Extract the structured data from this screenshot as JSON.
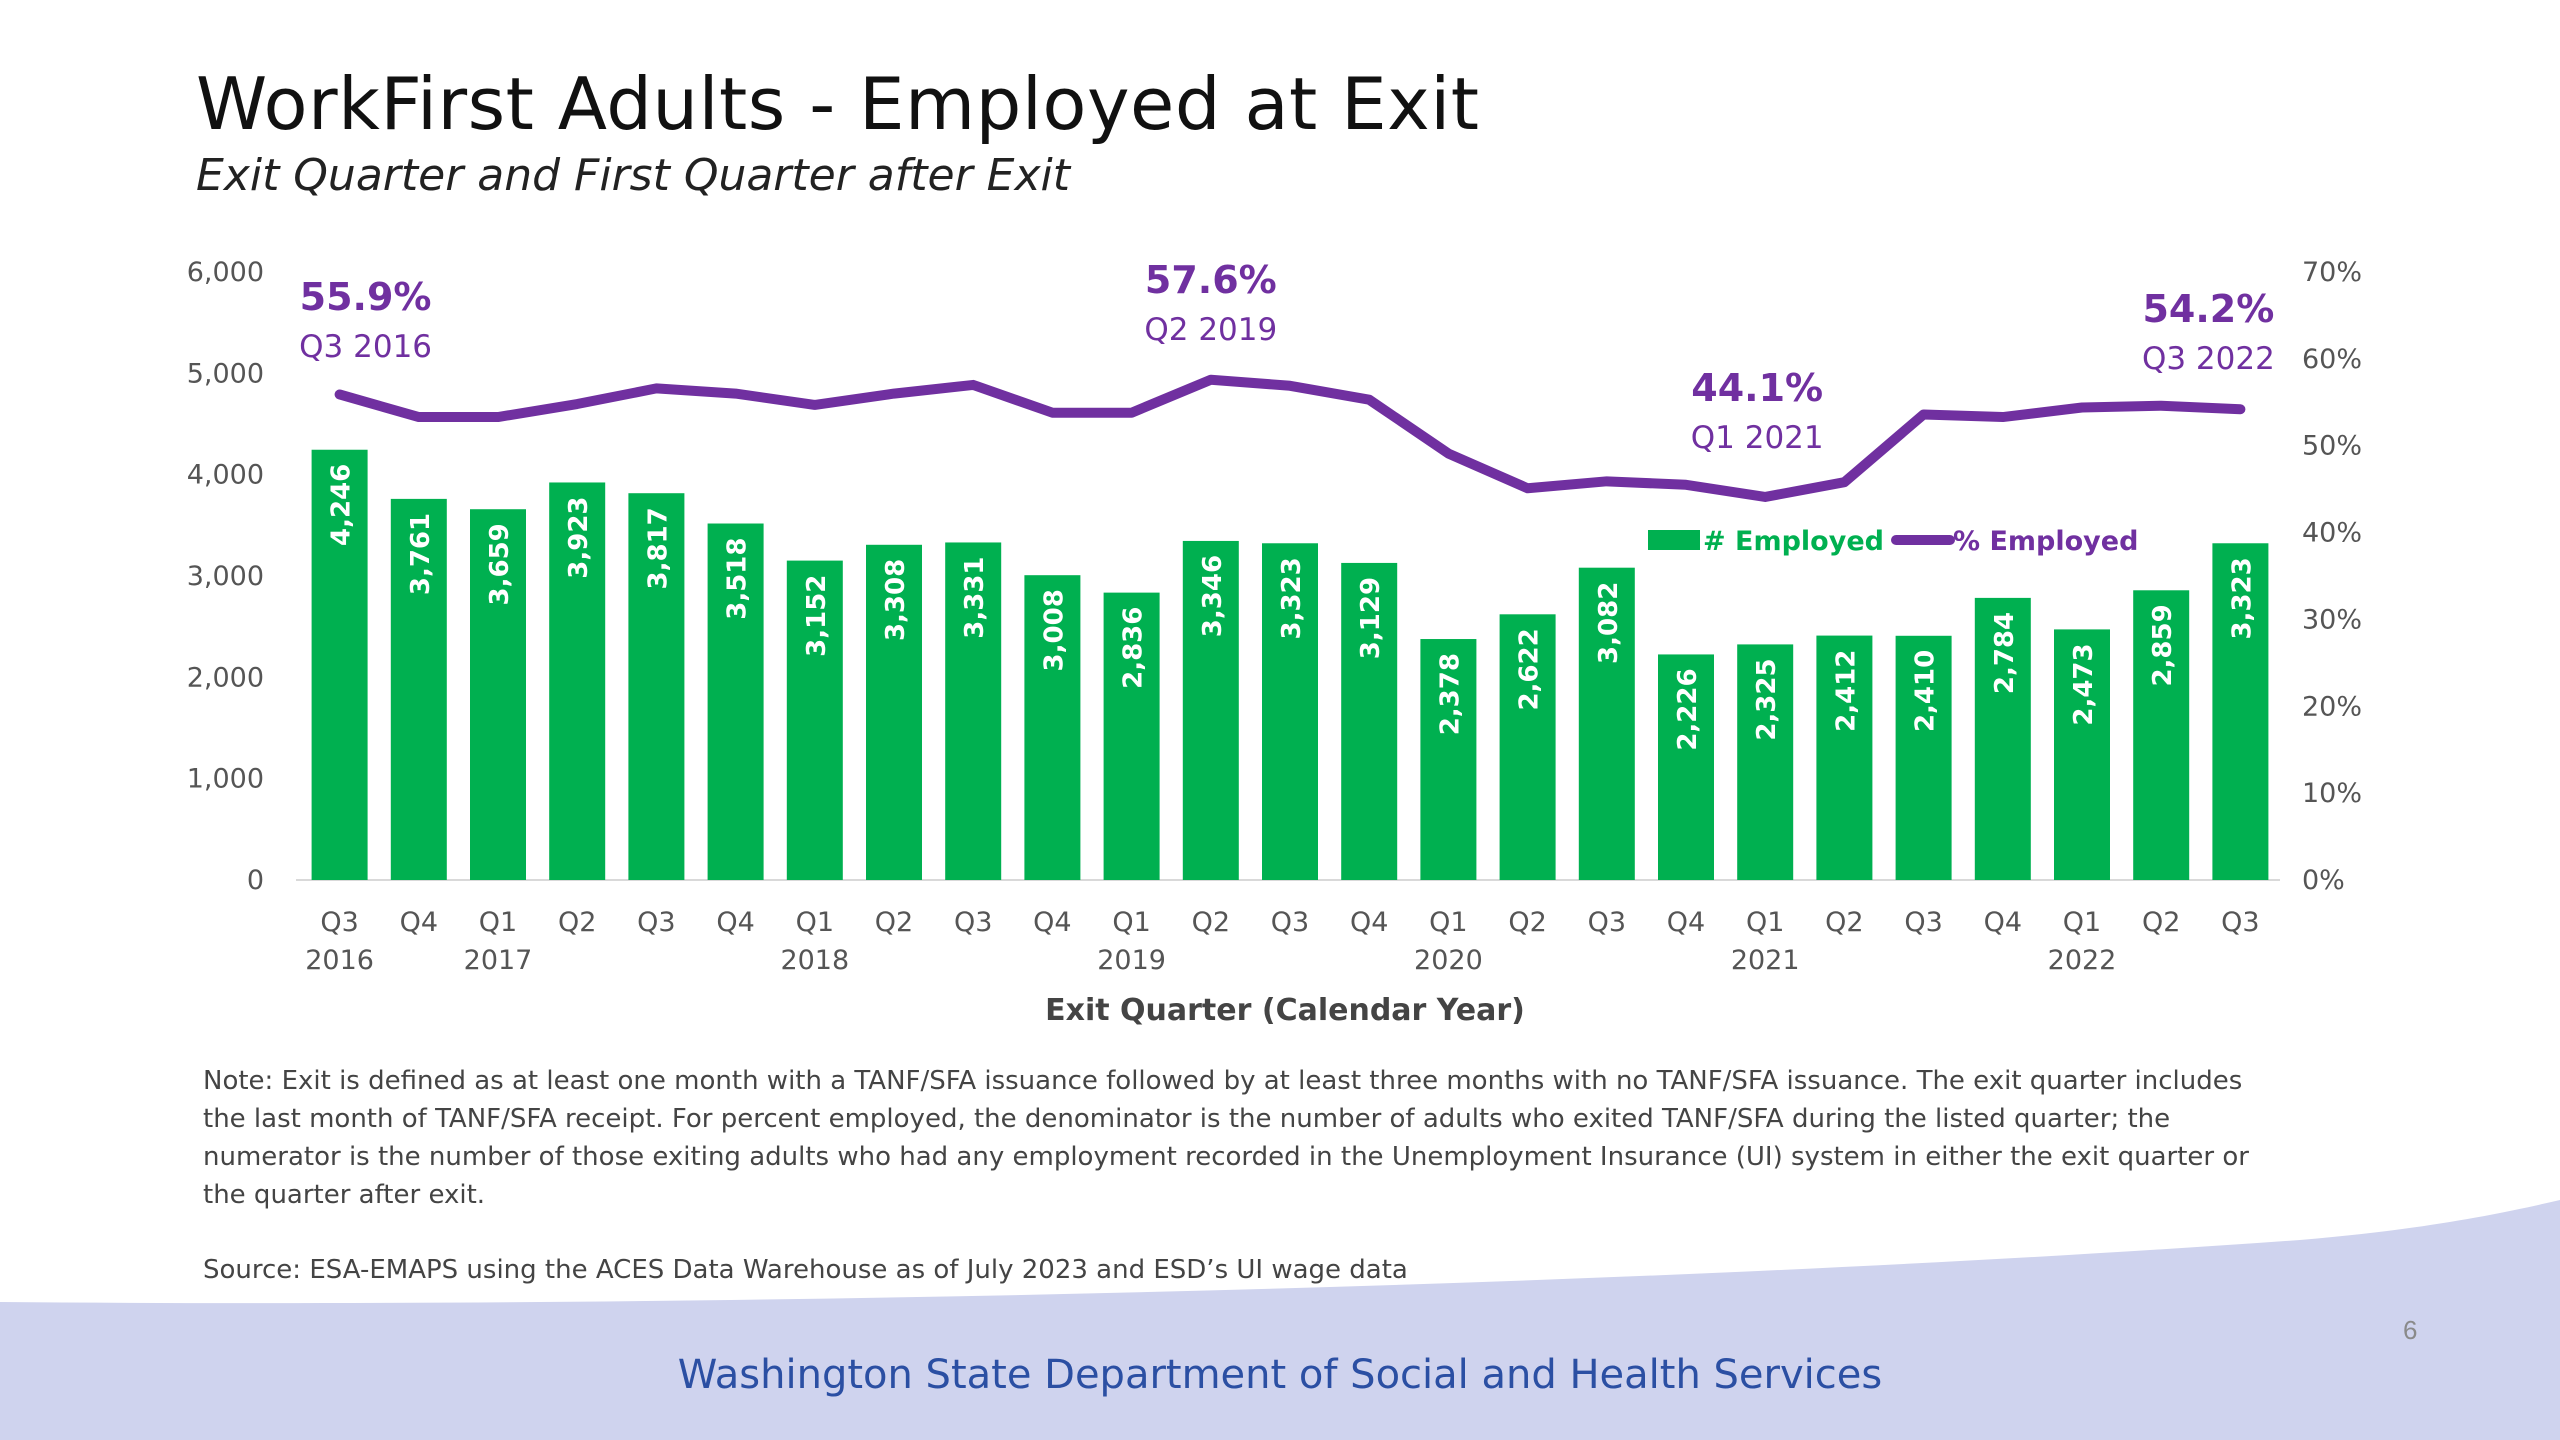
{
  "slide": {
    "title": "WorkFirst Adults - Employed at Exit",
    "subtitle": "Exit Quarter and First Quarter after Exit",
    "note": "Note: Exit is defined as at least one month with a TANF/SFA issuance followed by at least three months with no TANF/SFA issuance. The exit quarter includes the last month of TANF/SFA receipt. For percent employed, the denominator is the number of adults who exited TANF/SFA during the listed quarter; the numerator is the number of those exiting adults who had any employment recorded in the Unemployment Insurance (UI) system in either the exit quarter or the quarter after exit.",
    "source": "Source: ESA-EMAPS using the ACES Data Warehouse as of July 2023 and ESD’s UI wage data",
    "footer": "Washington State Department of Social and Health Services",
    "page_number": "6"
  },
  "chart_data": {
    "type": "bar",
    "xlabel": "Exit Quarter (Calendar Year)",
    "categories": [
      "Q3",
      "Q4",
      "Q1",
      "Q2",
      "Q3",
      "Q4",
      "Q1",
      "Q2",
      "Q3",
      "Q4",
      "Q1",
      "Q2",
      "Q3",
      "Q4",
      "Q1",
      "Q2",
      "Q3",
      "Q4",
      "Q1",
      "Q2",
      "Q3",
      "Q4",
      "Q1",
      "Q2",
      "Q3"
    ],
    "year_labels": [
      "2016",
      "",
      "2017",
      "",
      "",
      "",
      "2018",
      "",
      "",
      "",
      "2019",
      "",
      "",
      "",
      "2020",
      "",
      "",
      "",
      "2021",
      "",
      "",
      "",
      "2022",
      "",
      ""
    ],
    "series": [
      {
        "name": "# Employed",
        "type": "bar",
        "axis": "left",
        "color": "#00b050",
        "values": [
          4246,
          3761,
          3659,
          3923,
          3817,
          3518,
          3152,
          3308,
          3331,
          3008,
          2836,
          3346,
          3323,
          3129,
          2378,
          2622,
          3082,
          2226,
          2325,
          2412,
          2410,
          2784,
          2473,
          2859,
          3323
        ],
        "labels": [
          "4,246",
          "3,761",
          "3,659",
          "3,923",
          "3,817",
          "3,518",
          "3,152",
          "3,308",
          "3,331",
          "3,008",
          "2,836",
          "3,346",
          "3,323",
          "3,129",
          "2,378",
          "2,622",
          "3,082",
          "2,226",
          "2,325",
          "2,412",
          "2,410",
          "2,784",
          "2,473",
          "2,859",
          "3,323"
        ]
      },
      {
        "name": "% Employed",
        "type": "line",
        "axis": "right",
        "color": "#7030a0",
        "values": [
          55.9,
          53.3,
          53.3,
          54.8,
          56.6,
          56.0,
          54.7,
          56.0,
          57.0,
          53.8,
          53.8,
          57.6,
          56.9,
          55.3,
          49.1,
          45.1,
          45.9,
          45.5,
          44.1,
          45.8,
          53.6,
          53.3,
          54.4,
          54.6,
          54.2
        ]
      }
    ],
    "left_axis": {
      "ylim": [
        0,
        6000
      ],
      "ticks": [
        "0",
        "1,000",
        "2,000",
        "3,000",
        "4,000",
        "5,000",
        "6,000"
      ]
    },
    "right_axis": {
      "ylim": [
        0,
        70
      ],
      "ticks": [
        "0%",
        "10%",
        "20%",
        "30%",
        "40%",
        "50%",
        "60%",
        "70%"
      ]
    },
    "legend_position": "right, inside plot",
    "annotations": [
      {
        "index": 0,
        "value": "55.9%",
        "label": "Q3 2016"
      },
      {
        "index": 11,
        "value": "57.6%",
        "label": "Q2 2019"
      },
      {
        "index": 18,
        "value": "44.1%",
        "label": "Q1 2021"
      },
      {
        "index": 24,
        "value": "54.2%",
        "label": "Q3 2022"
      }
    ],
    "colors": {
      "bar": "#00b050",
      "line": "#7030a0",
      "footer_band": "#cfd3ee",
      "footer_text": "#2b4fa3"
    }
  }
}
